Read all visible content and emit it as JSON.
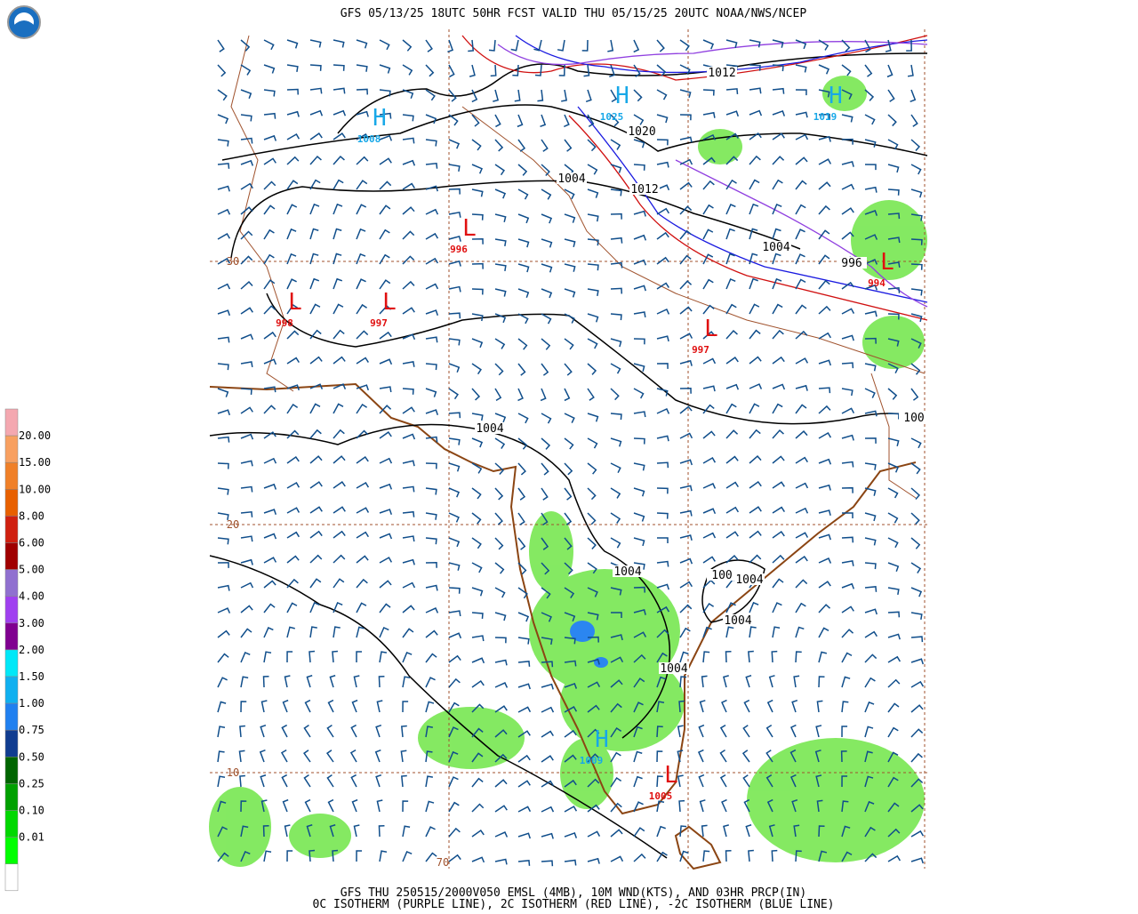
{
  "header": {
    "title": "GFS 05/13/25 18UTC 50HR FCST VALID THU 05/15/25 20UTC NOAA/NWS/NCEP"
  },
  "footer": {
    "line1": "GFS THU 250515/2000V050 EMSL (4MB), 10M WND(KTS), AND 03HR PRCP(IN)",
    "line2": "0C ISOTHERM (PURPLE LINE), 2C ISOTHERM (RED LINE), -2C ISOTHERM (BLUE LINE)"
  },
  "legend": {
    "labels": [
      "20.00",
      "15.00",
      "10.00",
      "8.00",
      "6.00",
      "5.00",
      "4.00",
      "3.00",
      "2.00",
      "1.50",
      "1.00",
      "0.75",
      "0.50",
      "0.25",
      "0.10",
      "0.01"
    ],
    "colors": [
      "#f4a8b0",
      "#f8a060",
      "#f08028",
      "#e86000",
      "#d02010",
      "#a00000",
      "#9070d0",
      "#a040f0",
      "#800090",
      "#00e8f8",
      "#10b0f0",
      "#2080f0",
      "#103c90",
      "#006400",
      "#00a000",
      "#00d800",
      "#00ff00",
      "#ffffff"
    ]
  },
  "map": {
    "grid_labels": [
      "30",
      "20",
      "10",
      "70"
    ],
    "isobar_labels": [
      "1012",
      "1020",
      "1004",
      "1012",
      "1004",
      "996",
      "1004",
      "1004",
      "100",
      "1004",
      "1004",
      "1004",
      "100"
    ],
    "centers": [
      {
        "letter": "H",
        "value": "1008"
      },
      {
        "letter": "H",
        "value": "1025"
      },
      {
        "letter": "H",
        "value": "1019"
      },
      {
        "letter": "L",
        "value": "996"
      },
      {
        "letter": "L",
        "value": "998"
      },
      {
        "letter": "L",
        "value": "997"
      },
      {
        "letter": "L",
        "value": "997"
      },
      {
        "letter": "L",
        "value": "994"
      },
      {
        "letter": "H",
        "value": "1009"
      },
      {
        "letter": "L",
        "value": "1005"
      }
    ]
  }
}
